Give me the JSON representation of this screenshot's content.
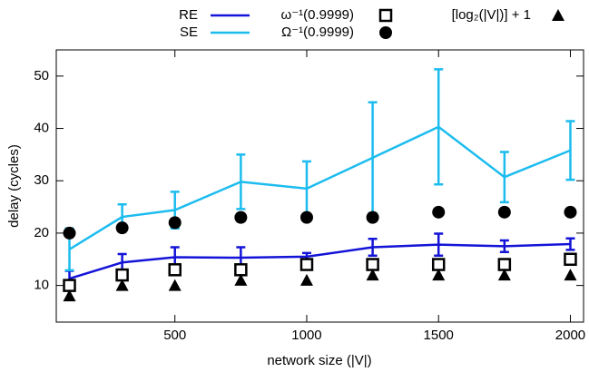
{
  "chart_data": {
    "type": "line",
    "x": [
      100,
      300,
      500,
      750,
      1000,
      1250,
      1500,
      1750,
      2000
    ],
    "xlim": [
      50,
      2050
    ],
    "xticks": [
      500,
      1000,
      1500,
      2000
    ],
    "ylim": [
      3,
      55
    ],
    "yticks": [
      10,
      20,
      30,
      40,
      50
    ],
    "xlabel": "network size (|V|)",
    "ylabel": "delay (cycles)",
    "series": [
      {
        "name": "RE",
        "color": "#1414d8",
        "style": "line",
        "values": [
          11.3,
          14.4,
          15.4,
          15.3,
          15.5,
          17.3,
          17.8,
          17.5,
          17.9
        ],
        "errors": [
          1.5,
          1.6,
          1.9,
          2,
          0.7,
          1.6,
          2.1,
          1.1,
          1.1
        ]
      },
      {
        "name": "SE",
        "color": "#1cbcef",
        "style": "line",
        "values": [
          16.9,
          23.1,
          24.4,
          29.8,
          28.5,
          34.4,
          40.3,
          30.7,
          35.8
        ],
        "errors": [
          4,
          2.4,
          3.5,
          5.2,
          5.2,
          10.6,
          11,
          4.8,
          5.6
        ]
      },
      {
        "name": "ω⁻¹(0.9999)",
        "color": "#000000",
        "style": "square",
        "values": [
          10,
          12,
          13,
          13,
          14,
          14,
          14,
          14,
          15
        ]
      },
      {
        "name": "Ω⁻¹(0.9999)",
        "color": "#000000",
        "style": "circle",
        "values": [
          20,
          21,
          22,
          23,
          23,
          23,
          24,
          24,
          24
        ]
      },
      {
        "name": "[log₂(|V|)] + 1",
        "color": "#000000",
        "style": "triangle",
        "values": [
          8,
          10,
          10,
          11,
          11,
          12,
          12,
          12,
          12
        ]
      }
    ]
  }
}
